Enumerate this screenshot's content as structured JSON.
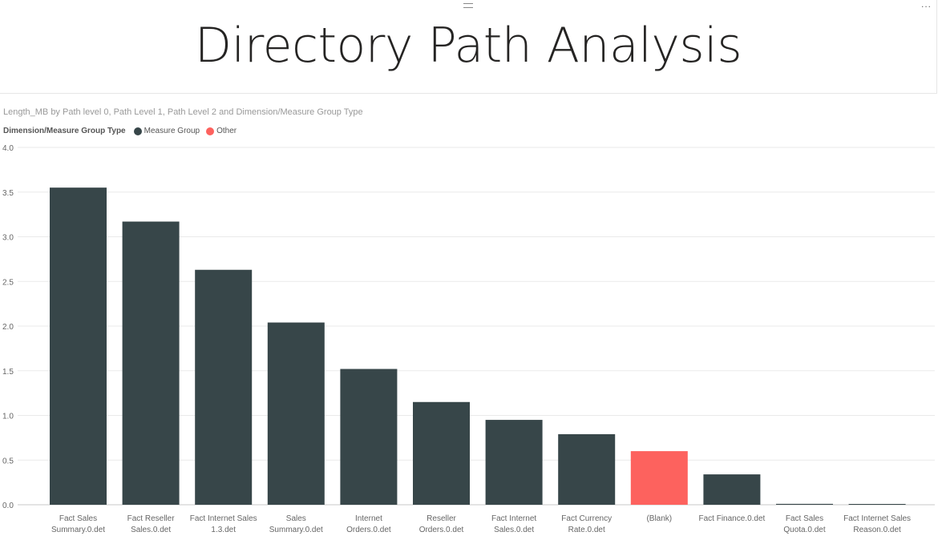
{
  "page": {
    "title": "Directory Path Analysis",
    "more_label": "..."
  },
  "colors": {
    "measure_group": "#374649",
    "other": "#FD625E"
  },
  "legend": {
    "title": "Dimension/Measure Group Type",
    "items": [
      {
        "label": "Measure Group",
        "color": "#374649"
      },
      {
        "label": "Other",
        "color": "#FD625E"
      }
    ]
  },
  "chart_data": {
    "type": "bar",
    "title": "Length_MB by Path level 0, Path Level 1, Path Level 2 and Dimension/Measure Group Type",
    "xlabel": "",
    "ylabel": "",
    "ylim": [
      0,
      4
    ],
    "yticks": [
      "0.0",
      "0.5",
      "1.0",
      "1.5",
      "2.0",
      "2.5",
      "3.0",
      "3.5",
      "4.0"
    ],
    "grid": true,
    "legend_position": "top-left",
    "categories": [
      [
        "Fact Sales",
        "Summary.0.det"
      ],
      [
        "Fact Reseller",
        "Sales.0.det"
      ],
      [
        "Fact Internet Sales",
        "1.3.det"
      ],
      [
        "Sales",
        "Summary.0.det"
      ],
      [
        "Internet",
        "Orders.0.det"
      ],
      [
        "Reseller",
        "Orders.0.det"
      ],
      [
        "Fact Internet",
        "Sales.0.det"
      ],
      [
        "Fact Currency",
        "Rate.0.det"
      ],
      [
        "(Blank)"
      ],
      [
        "Fact Finance.0.det"
      ],
      [
        "Fact Sales",
        "Quota.0.det"
      ],
      [
        "Fact Internet Sales",
        "Reason.0.det"
      ]
    ],
    "values": [
      3.55,
      3.17,
      2.63,
      2.04,
      1.52,
      1.15,
      0.95,
      0.79,
      0.6,
      0.34,
      0.01,
      0.005
    ],
    "series_type": [
      "Measure Group",
      "Measure Group",
      "Measure Group",
      "Measure Group",
      "Measure Group",
      "Measure Group",
      "Measure Group",
      "Measure Group",
      "Other",
      "Measure Group",
      "Measure Group",
      "Measure Group"
    ]
  }
}
